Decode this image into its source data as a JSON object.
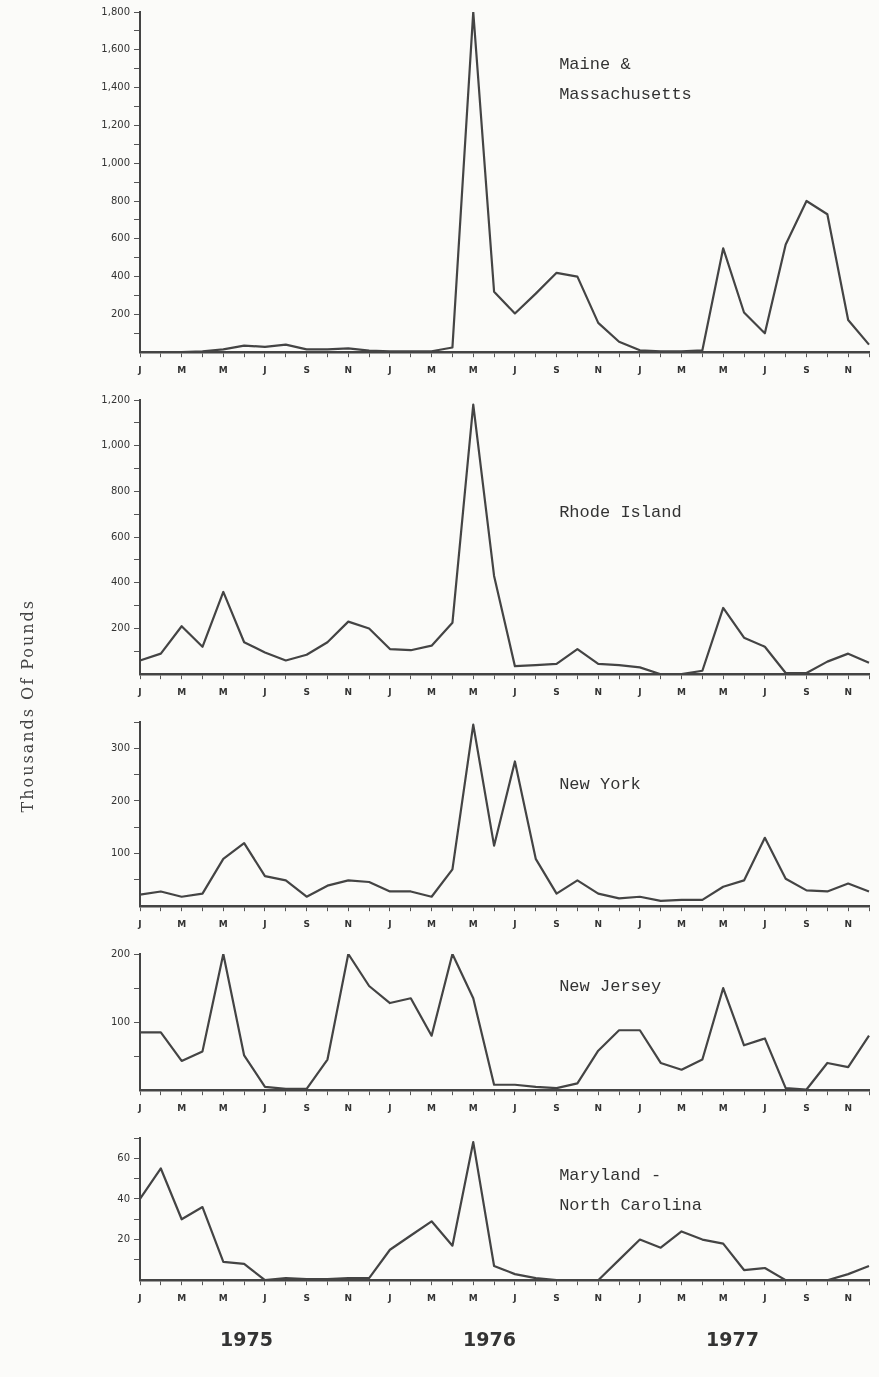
{
  "chart_data": [
    {
      "type": "line",
      "title": "Maine & Massachusetts",
      "marker": "none",
      "color": "#444444",
      "categories": [
        "J",
        null,
        "M",
        null,
        "M",
        null,
        "J",
        null,
        "S",
        null,
        "N",
        null,
        "J",
        null,
        "M",
        null,
        "M",
        null,
        "J",
        null,
        "S",
        null,
        "N",
        null,
        "J",
        null,
        "M",
        null,
        "M",
        null,
        "J",
        null,
        "S",
        null,
        "N",
        null
      ],
      "values": [
        0,
        0,
        0,
        5,
        15,
        35,
        28,
        40,
        15,
        15,
        20,
        8,
        5,
        5,
        5,
        25,
        1800,
        320,
        205,
        310,
        420,
        400,
        155,
        55,
        10,
        5,
        5,
        10,
        550,
        210,
        100,
        570,
        800,
        730,
        170,
        40
      ],
      "ylim": [
        0,
        1800
      ],
      "yticks": [
        {
          "value": 100,
          "label": null
        },
        {
          "value": 200,
          "label": "200"
        },
        {
          "value": 300,
          "label": null
        },
        {
          "value": 400,
          "label": "400"
        },
        {
          "value": 500,
          "label": null
        },
        {
          "value": 600,
          "label": "600"
        },
        {
          "value": 700,
          "label": null
        },
        {
          "value": 800,
          "label": "800"
        },
        {
          "value": 900,
          "label": null
        },
        {
          "value": 1000,
          "label": "1,000"
        },
        {
          "value": 1100,
          "label": null
        },
        {
          "value": 1200,
          "label": "1,200"
        },
        {
          "value": 1300,
          "label": null
        },
        {
          "value": 1400,
          "label": "1,400"
        },
        {
          "value": 1500,
          "label": null
        },
        {
          "value": 1600,
          "label": "1,600"
        },
        {
          "value": 1700,
          "label": null
        },
        {
          "value": 1800,
          "label": "1,800"
        }
      ]
    },
    {
      "type": "line",
      "title": "Rhode Island",
      "marker": "none",
      "color": "#444444",
      "categories": [
        "J",
        null,
        "M",
        null,
        "M",
        null,
        "J",
        null,
        "S",
        null,
        "N",
        null,
        "J",
        null,
        "M",
        null,
        "M",
        null,
        "J",
        null,
        "S",
        null,
        "N",
        null,
        "J",
        null,
        "M",
        null,
        "M",
        null,
        "J",
        null,
        "S",
        null,
        "N",
        null
      ],
      "values": [
        60,
        90,
        210,
        120,
        360,
        140,
        95,
        60,
        85,
        140,
        230,
        200,
        110,
        105,
        125,
        225,
        1180,
        430,
        35,
        40,
        45,
        110,
        45,
        40,
        30,
        0,
        0,
        15,
        290,
        160,
        120,
        5,
        5,
        55,
        90,
        50
      ],
      "ylim": [
        0,
        1200
      ],
      "yticks": [
        {
          "value": 100,
          "label": null
        },
        {
          "value": 200,
          "label": "200"
        },
        {
          "value": 300,
          "label": null
        },
        {
          "value": 400,
          "label": "400"
        },
        {
          "value": 500,
          "label": null
        },
        {
          "value": 600,
          "label": "600"
        },
        {
          "value": 700,
          "label": null
        },
        {
          "value": 800,
          "label": "800"
        },
        {
          "value": 900,
          "label": null
        },
        {
          "value": 1000,
          "label": "1,000"
        },
        {
          "value": 1100,
          "label": null
        },
        {
          "value": 1200,
          "label": "1,200"
        }
      ]
    },
    {
      "type": "line",
      "title": "New York",
      "ylabel": "Thousands Of Pounds",
      "marker": "none",
      "color": "#444444",
      "categories": [
        "J",
        null,
        "M",
        null,
        "M",
        null,
        "J",
        null,
        "S",
        null,
        "N",
        null,
        "J",
        null,
        "M",
        null,
        "M",
        null,
        "J",
        null,
        "S",
        null,
        "N",
        null,
        "J",
        null,
        "M",
        null,
        "M",
        null,
        "J",
        null,
        "S",
        null,
        "N",
        null
      ],
      "values": [
        22,
        28,
        18,
        24,
        90,
        120,
        57,
        49,
        18,
        39,
        49,
        46,
        28,
        28,
        18,
        70,
        345,
        115,
        275,
        90,
        24,
        49,
        24,
        15,
        18,
        10,
        12,
        12,
        37,
        49,
        130,
        52,
        30,
        28,
        43,
        28
      ],
      "ylim": [
        0,
        350
      ],
      "yticks": [
        {
          "value": 50,
          "label": null
        },
        100,
        {
          "value": 150,
          "label": null
        },
        200,
        {
          "value": 250,
          "label": null
        },
        300,
        {
          "value": 350,
          "label": null
        }
      ]
    },
    {
      "type": "line",
      "title": "New Jersey",
      "marker": "none",
      "color": "#444444",
      "categories": [
        "J",
        null,
        "M",
        null,
        "M",
        null,
        "J",
        null,
        "S",
        null,
        "N",
        null,
        "J",
        null,
        "M",
        null,
        "M",
        null,
        "J",
        null,
        "S",
        null,
        "N",
        null,
        "J",
        null,
        "M",
        null,
        "M",
        null,
        "J",
        null,
        "S",
        null,
        "N",
        null
      ],
      "values": [
        85,
        85,
        43,
        57,
        200,
        51,
        5,
        2,
        2,
        45,
        200,
        153,
        128,
        135,
        80,
        200,
        135,
        8,
        8,
        5,
        3,
        10,
        58,
        88,
        88,
        40,
        30,
        45,
        150,
        66,
        76,
        3,
        1,
        40,
        34,
        80
      ],
      "ylim": [
        0,
        200
      ],
      "yticks": [
        {
          "value": 50,
          "label": null
        },
        100,
        {
          "value": 150,
          "label": null
        },
        200
      ]
    },
    {
      "type": "line",
      "title": "Maryland - North Carolina",
      "marker": "none",
      "color": "#444444",
      "categories": [
        "J",
        null,
        "M",
        null,
        "M",
        null,
        "J",
        null,
        "S",
        null,
        "N",
        null,
        "J",
        null,
        "M",
        null,
        "M",
        null,
        "J",
        null,
        "S",
        null,
        "N",
        null,
        "J",
        null,
        "M",
        null,
        "M",
        null,
        "J",
        null,
        "S",
        null,
        "N",
        null
      ],
      "values": [
        40,
        55,
        30,
        36,
        9,
        8,
        0,
        1,
        0.5,
        0.5,
        1,
        1,
        15,
        22,
        29,
        17,
        68,
        7,
        3,
        1,
        0,
        0,
        0,
        10,
        20,
        16,
        24,
        20,
        18,
        5,
        6,
        0,
        0,
        0,
        3,
        7
      ],
      "ylim": [
        0,
        70
      ],
      "yticks": [
        {
          "value": 10,
          "label": null
        },
        20,
        {
          "value": 30,
          "label": null
        },
        40,
        {
          "value": 50,
          "label": null
        },
        60,
        {
          "value": 70,
          "label": null
        }
      ],
      "annotations": [
        "1975",
        "1976",
        "1977"
      ]
    }
  ]
}
